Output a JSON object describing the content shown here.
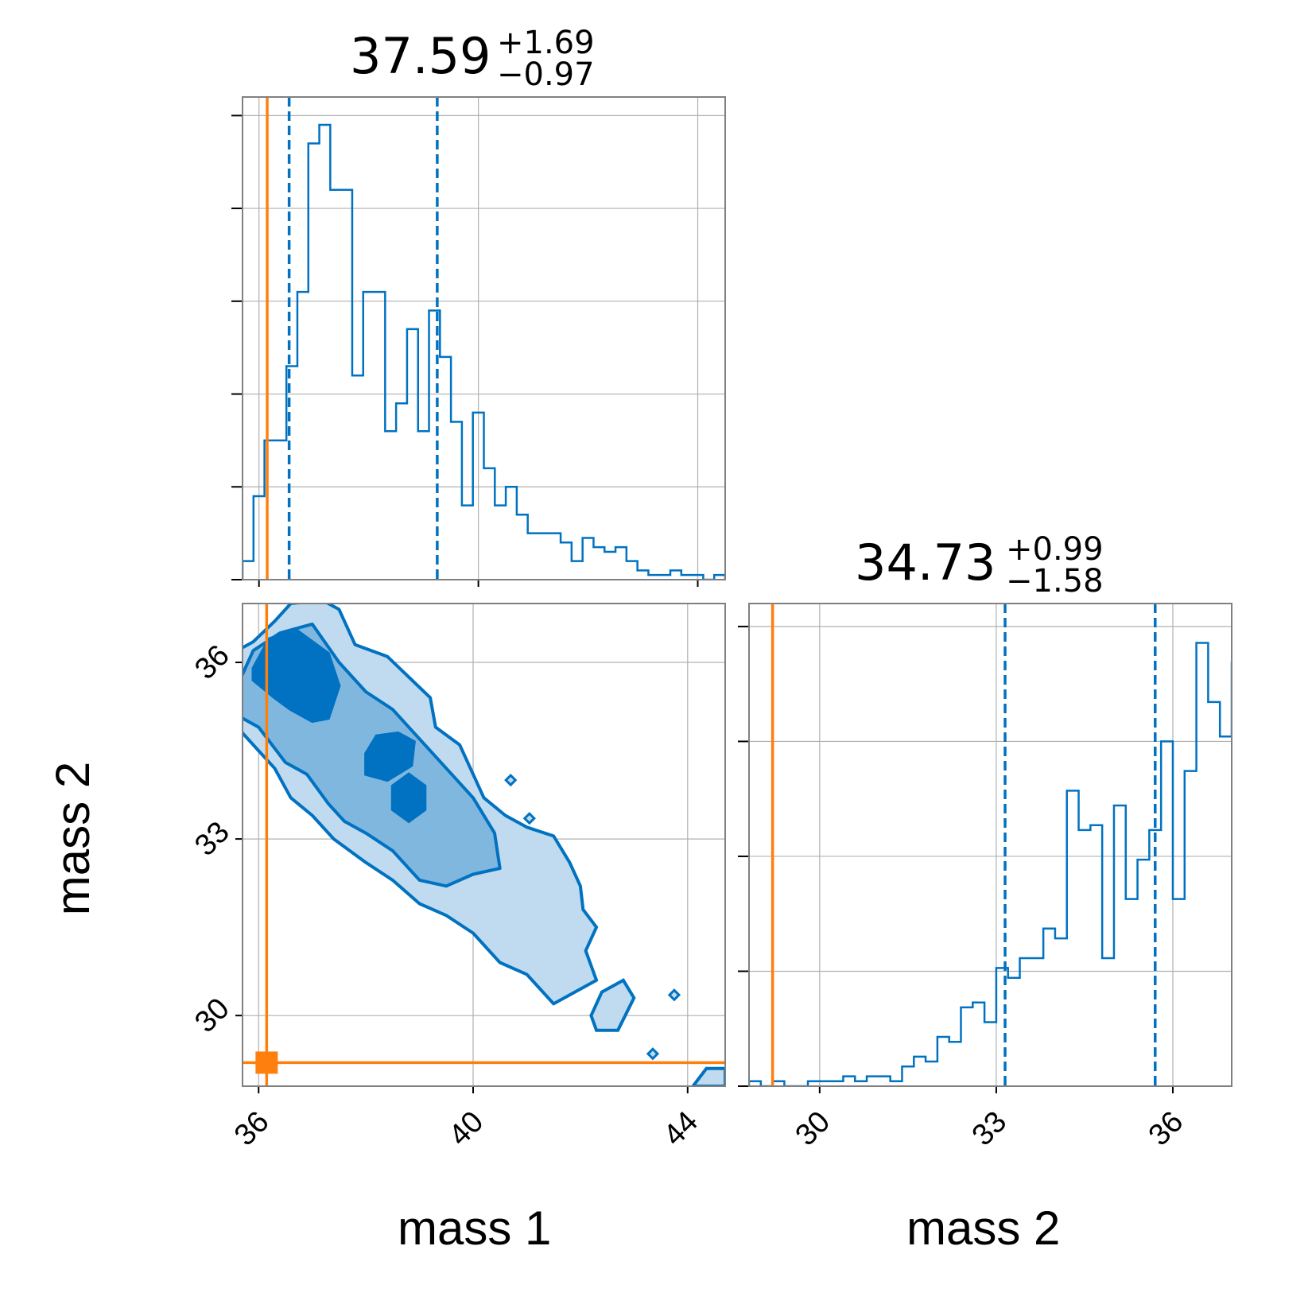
{
  "chart_data": {
    "type": "corner",
    "parameters": [
      "mass 1",
      "mass 2"
    ],
    "truth": {
      "mass1": 36.15,
      "mass2": 29.2
    },
    "colors": {
      "posterior": "#0072C1",
      "truth": "#FF7F0E",
      "grid": "#b0b0b0",
      "frame": "#808080"
    },
    "grid": true,
    "panels": [
      {
        "id": "hist-mass1",
        "type": "step-histogram",
        "title": {
          "value": "37.59",
          "plus": "+1.69",
          "minus": "−0.97"
        },
        "xlim": [
          35.7,
          44.5
        ],
        "xticks": [
          36,
          40,
          44
        ],
        "quantile_lines": [
          36.55,
          39.25
        ],
        "bins": {
          "start": 35.7,
          "width": 0.2
        },
        "counts": [
          0.2,
          0.9,
          1.5,
          1.5,
          2.3,
          3.1,
          4.7,
          4.9,
          4.2,
          4.2,
          2.2,
          3.1,
          3.1,
          1.6,
          1.9,
          2.7,
          1.6,
          2.9,
          2.4,
          1.7,
          0.8,
          1.8,
          1.2,
          0.8,
          1.0,
          0.7,
          0.5,
          0.5,
          0.5,
          0.4,
          0.2,
          0.45,
          0.35,
          0.3,
          0.35,
          0.2,
          0.1,
          0.05,
          0.05,
          0.1,
          0.05,
          0.05,
          0.0,
          0.05,
          0.0,
          0.0
        ],
        "ylim": [
          0,
          5.2
        ],
        "has_tick_labels": false
      },
      {
        "id": "contour-mass1-mass2",
        "type": "2d-contour",
        "xlim": [
          35.7,
          44.7
        ],
        "ylim": [
          28.8,
          37.0
        ],
        "xticks": [
          36,
          40,
          44
        ],
        "yticks": [
          30,
          33,
          36
        ],
        "levels": [
          "0.5",
          "0.9",
          "0.99"
        ],
        "peak_region": {
          "x": 36.6,
          "y": 35.5
        }
      },
      {
        "id": "hist-mass2",
        "type": "step-histogram",
        "title": {
          "value": "34.73",
          "plus": "+0.99",
          "minus": "−1.58"
        },
        "xlim": [
          28.8,
          37.0
        ],
        "xticks": [
          30,
          33,
          36
        ],
        "quantile_lines": [
          33.15,
          35.7
        ],
        "bins": {
          "start": 28.8,
          "width": 0.2
        },
        "counts": [
          0.05,
          0.0,
          0.05,
          0.0,
          0.0,
          0.05,
          0.05,
          0.05,
          0.1,
          0.05,
          0.1,
          0.1,
          0.05,
          0.2,
          0.3,
          0.25,
          0.5,
          0.45,
          0.8,
          0.85,
          0.65,
          1.2,
          1.1,
          1.3,
          1.3,
          1.6,
          1.5,
          3.0,
          2.6,
          2.65,
          1.3,
          2.85,
          1.9,
          2.3,
          2.6,
          3.5,
          1.9,
          3.2,
          4.5,
          3.9,
          3.55,
          4.3,
          2.3,
          3.4,
          1.8,
          0.5,
          0.4,
          0.15,
          0.1,
          0.05
        ],
        "ylim": [
          0,
          4.9
        ],
        "has_tick_labels": false
      }
    ]
  },
  "labels": {
    "xlabel_mass1": "mass 1",
    "xlabel_mass2": "mass 2",
    "ylabel_mass2": "mass 2"
  }
}
